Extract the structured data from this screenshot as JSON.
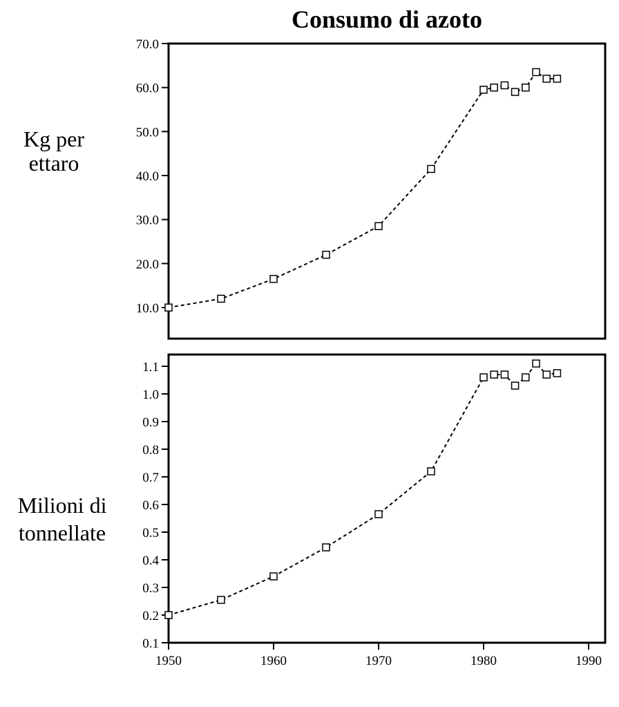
{
  "chart_data": [
    {
      "type": "line",
      "title": "Consumo di azoto",
      "ylabel_lines": [
        "Kg per",
        "ettaro"
      ],
      "xlim": [
        1950,
        1990
      ],
      "ylim": [
        0,
        70
      ],
      "yticks": [
        "10.0",
        "20.0",
        "30.0",
        "40.0",
        "50.0",
        "60.0",
        "70.0"
      ],
      "grid": false,
      "marker": "open-square",
      "line_style": "dashed",
      "x": [
        1950,
        1955,
        1960,
        1965,
        1970,
        1975,
        1980,
        1981,
        1982,
        1983,
        1984,
        1985,
        1986,
        1987
      ],
      "y": [
        10.0,
        12.0,
        16.5,
        22.0,
        28.5,
        41.5,
        59.5,
        60.0,
        60.5,
        59.0,
        60.0,
        63.5,
        62.0,
        62.0
      ]
    },
    {
      "type": "line",
      "ylabel_lines": [
        "Milioni di",
        "tonnellate"
      ],
      "xlabel": "",
      "xlim": [
        1950,
        1990
      ],
      "ylim": [
        0.1,
        1.15
      ],
      "xticks": [
        "1950",
        "1960",
        "1970",
        "1980",
        "1990"
      ],
      "yticks": [
        "0.1",
        "0.2",
        "0.3",
        "0.4",
        "0.5",
        "0.6",
        "0.7",
        "0.8",
        "0.9",
        "1.0",
        "1.1"
      ],
      "grid": false,
      "marker": "open-square",
      "line_style": "dashed",
      "x": [
        1950,
        1955,
        1960,
        1965,
        1970,
        1975,
        1980,
        1981,
        1982,
        1983,
        1984,
        1985,
        1986,
        1987
      ],
      "y": [
        0.2,
        0.255,
        0.34,
        0.445,
        0.565,
        0.72,
        1.06,
        1.07,
        1.07,
        1.03,
        1.06,
        1.11,
        1.07,
        1.075
      ]
    }
  ]
}
